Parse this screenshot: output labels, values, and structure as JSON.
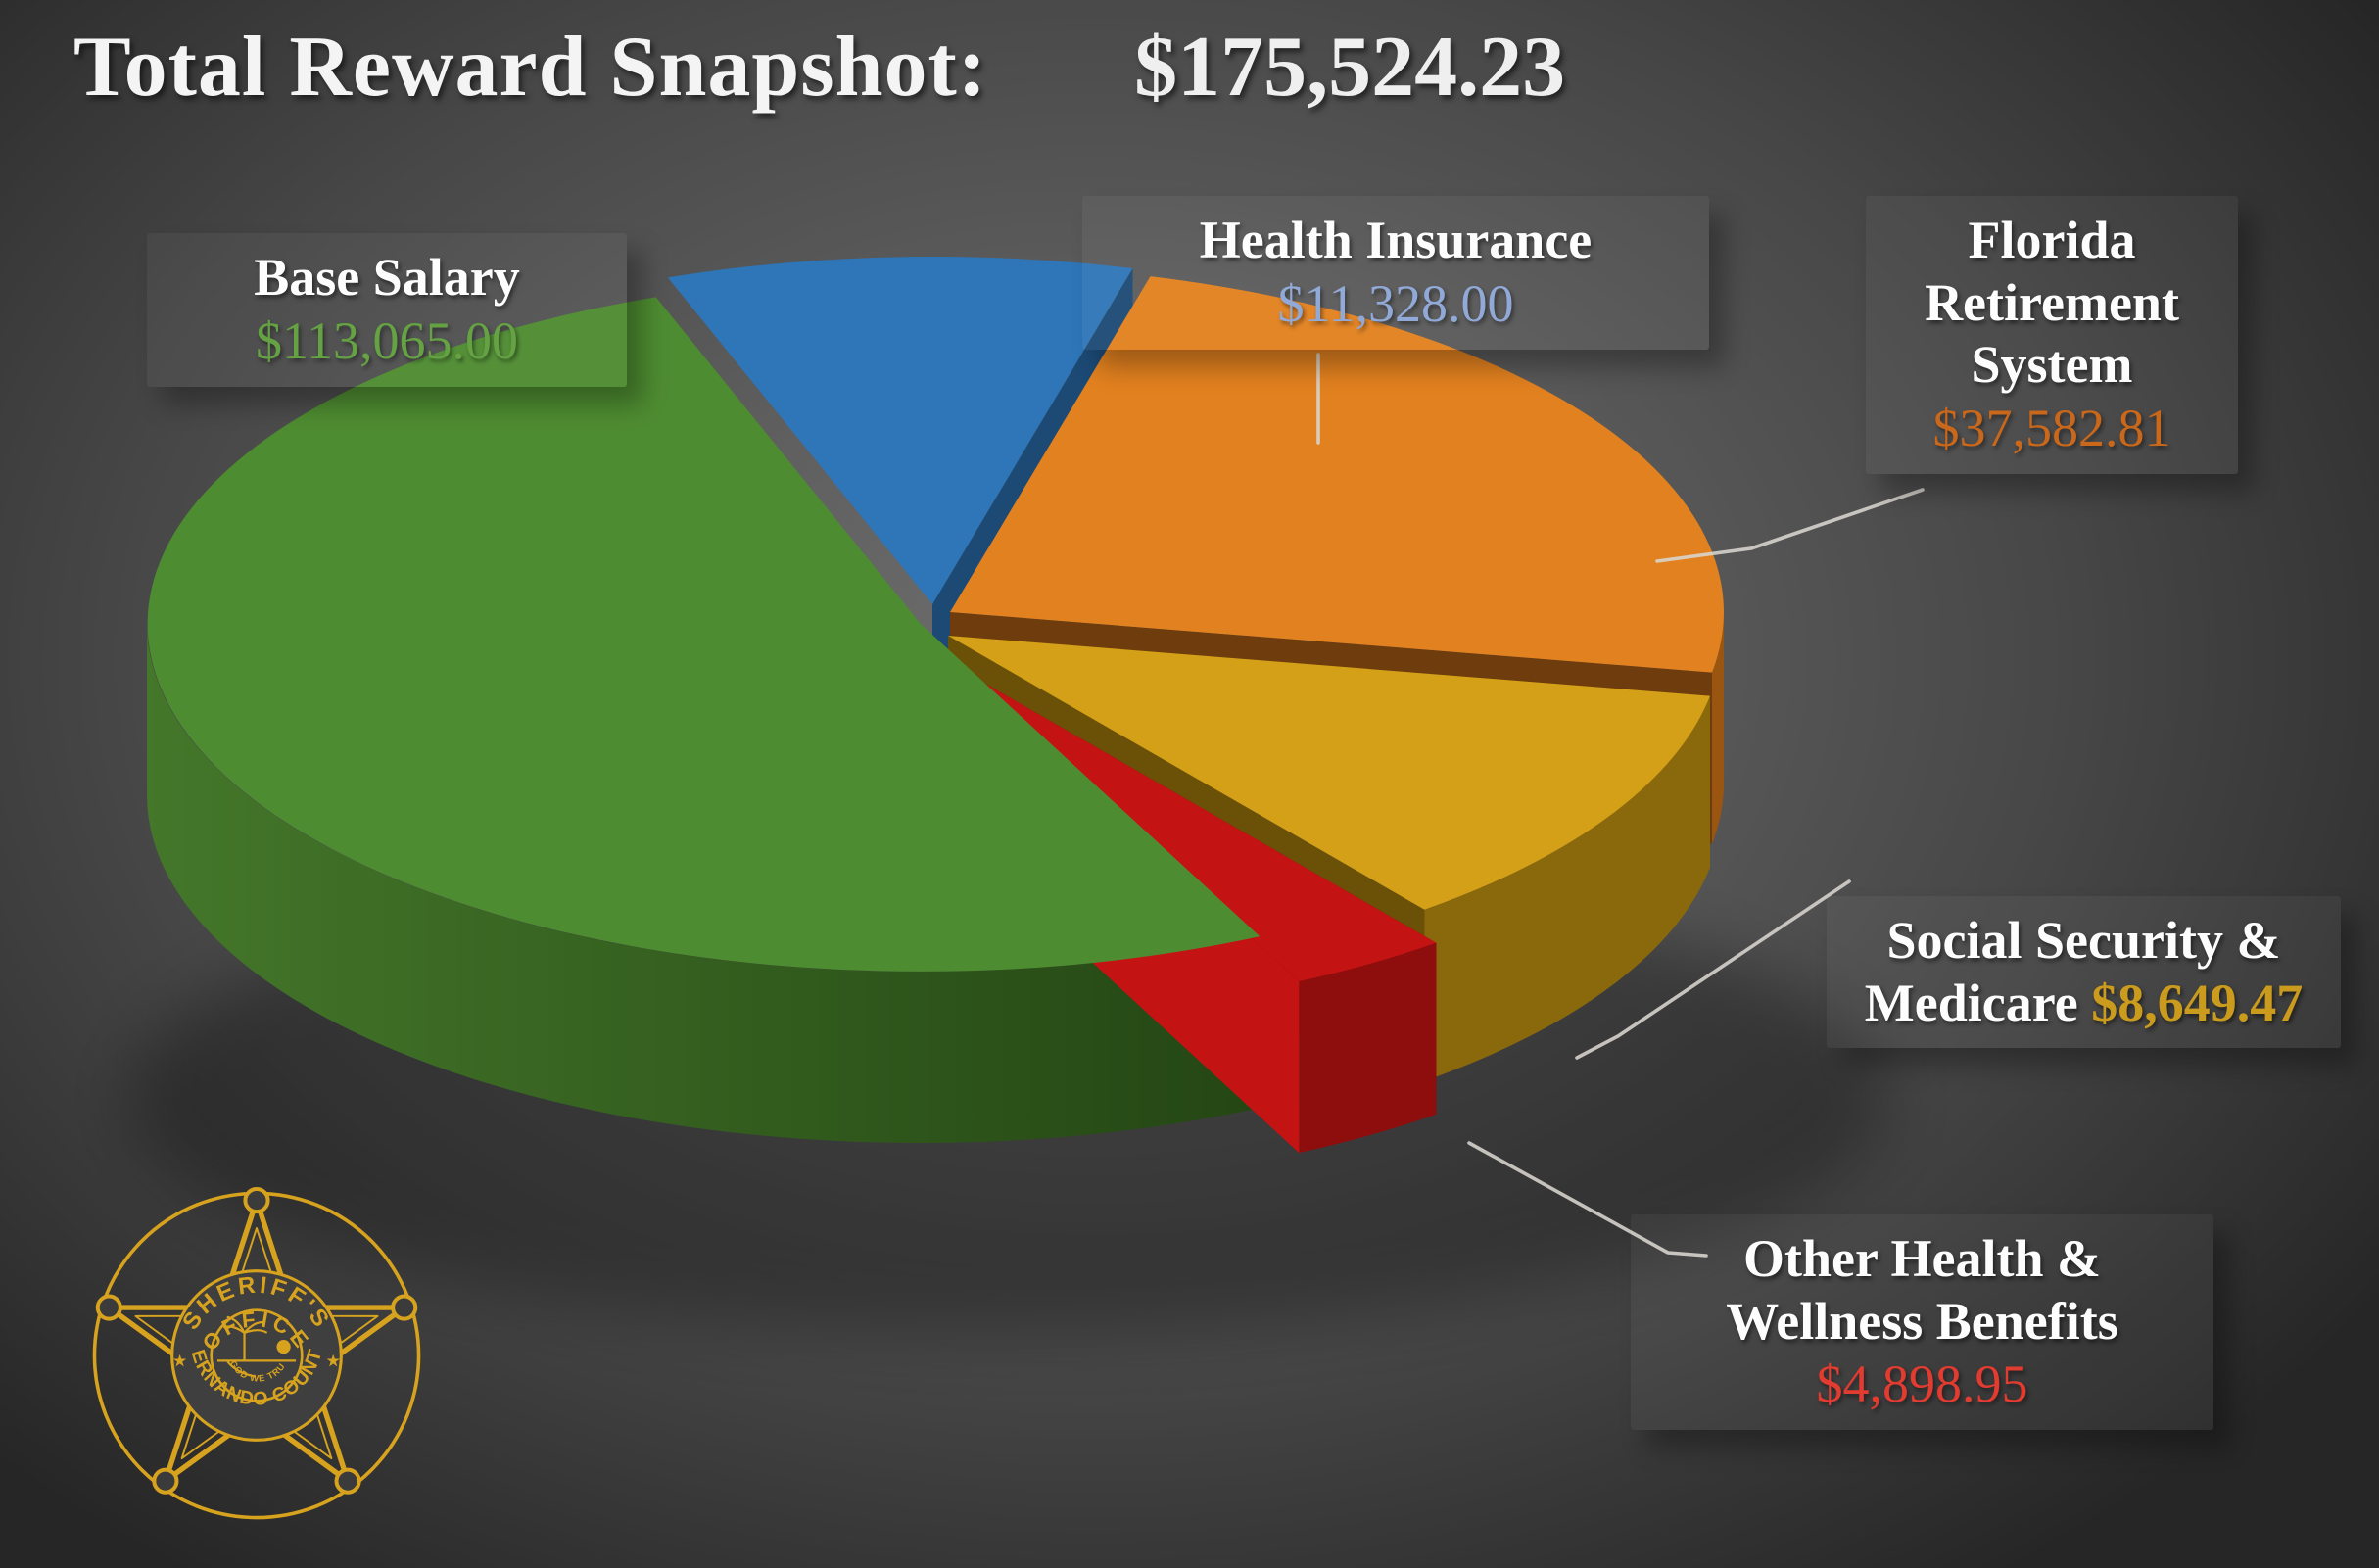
{
  "header": {
    "title": "Total Reward Snapshot:",
    "total": "$175,524.23"
  },
  "chart_data": {
    "type": "pie",
    "style": "3d-exploded",
    "title": "Total Reward Snapshot",
    "total_value": 175524.23,
    "total_label": "$175,524.23",
    "legend_position": "callout-labels-around-pie",
    "slices": [
      {
        "label": "Base Salary",
        "amount": "$113,065.00",
        "value": 113065.0,
        "color": "#4E8C31",
        "side_color_light": "#44772A",
        "side_color_dark": "#244614",
        "amount_color": "#65A243"
      },
      {
        "label": "Health Insurance",
        "amount": "$11,328.00",
        "value": 11328.0,
        "color": "#2E76B8",
        "side_color_light": "#245E94",
        "side_color_dark": "#1C4A75",
        "amount_color": "#91A9D6"
      },
      {
        "label": "Florida Retirement System",
        "amount": "$37,582.81",
        "value": 37582.81,
        "color": "#E2811F",
        "side_color_light": "#9A5611",
        "side_color_dark": "#6E3C0D",
        "amount_color": "#C9671B"
      },
      {
        "label": "Social Security & Medicare",
        "amount": "$8,649.47",
        "value": 8649.47,
        "color": "#D3A017",
        "side_color_light": "#8A690C",
        "side_color_dark": "#6B5107",
        "amount_color": "#CA9B1D"
      },
      {
        "label": "Other Health & Wellness Benefits",
        "amount": "$4,898.95",
        "value": 4898.95,
        "color": "#C41313",
        "side_color_light": "#8E0D0D",
        "side_color_dark": "#6F0909",
        "amount_color": "#E23B30"
      }
    ]
  },
  "badge": {
    "arc_top": "SHERIFF'S",
    "arc_second": "OFFICE",
    "arc_bottom": "HERNANDO COUNTY",
    "motto": "IN GOD WE TRUST",
    "star_left": "★",
    "star_right": "★",
    "color": "#D7A31F"
  }
}
